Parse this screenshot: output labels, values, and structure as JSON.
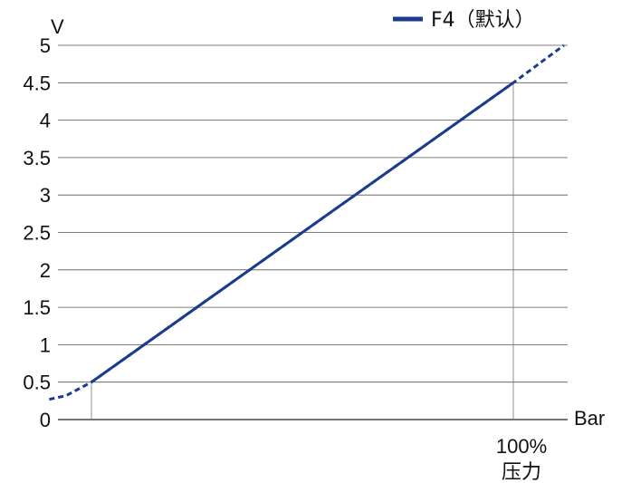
{
  "chart_data": {
    "type": "line",
    "ylabel": "V",
    "xlabel": "Bar",
    "ylim": [
      0,
      5
    ],
    "yticks": [
      "0",
      "0.5",
      "1",
      "1.5",
      "2",
      "2.5",
      "3",
      "3.5",
      "4",
      "4.5",
      "5"
    ],
    "x_marker_label": [
      "100%",
      "压力"
    ],
    "x_range": [
      -10,
      112
    ],
    "grid": "horizontal",
    "legend_position": "top-right",
    "series": [
      {
        "name": "F4（默认）",
        "color": "#1a3c8c",
        "solid_points": [
          [
            0,
            0.5
          ],
          [
            100,
            4.5
          ]
        ],
        "dashed_points": [
          [
            -10,
            0.27
          ],
          [
            -6,
            0.32
          ],
          [
            0,
            0.5
          ],
          [
            100,
            4.5
          ],
          [
            112,
            5.0
          ]
        ]
      }
    ],
    "reference_lines_x": [
      0,
      100
    ]
  }
}
